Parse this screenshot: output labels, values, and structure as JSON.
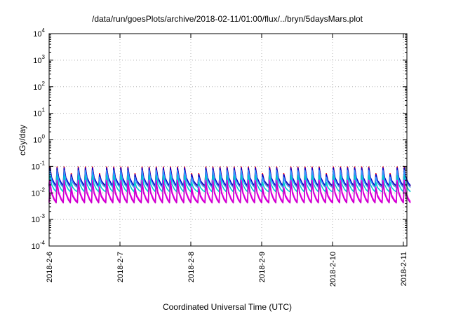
{
  "chart_data": {
    "type": "line",
    "title": "/data/run/goesPlots/archive/2018-02-11/01:00/flux/../bryn/5daysMars.plot",
    "xlabel": "Coordinated Universal Time (UTC)",
    "ylabel": "cGy/day",
    "y_scale": "log",
    "ylim": [
      0.0001,
      10000
    ],
    "y_ticks": [
      {
        "base": "10",
        "exp": "4"
      },
      {
        "base": "10",
        "exp": "3"
      },
      {
        "base": "10",
        "exp": "2"
      },
      {
        "base": "10",
        "exp": "1"
      },
      {
        "base": "10",
        "exp": "0"
      },
      {
        "base": "10",
        "exp": "-1"
      },
      {
        "base": "10",
        "exp": "-2"
      },
      {
        "base": "10",
        "exp": "-3"
      },
      {
        "base": "10",
        "exp": "-4"
      }
    ],
    "x_ticks": [
      "2018-2-6",
      "2018-2-7",
      "2018-2-8",
      "2018-2-9",
      "2018-2-10",
      "2018-2-11"
    ],
    "xlim_days": [
      0,
      5.05
    ],
    "grid": true,
    "cycles_per_day": 10,
    "series": [
      {
        "color": "#ff0000",
        "peak": 0.095,
        "trough": 0.018
      },
      {
        "color": "#0000cc",
        "peak": 0.088,
        "trough": 0.019
      },
      {
        "color": "#3399ff",
        "peak": 0.07,
        "trough": 0.016
      },
      {
        "color": "#00cccc",
        "peak": 0.045,
        "trough": 0.011
      },
      {
        "color": "#ff00ff",
        "peak": 0.03,
        "trough": 0.0047
      },
      {
        "color": "#cc00cc",
        "peak": 0.026,
        "trough": 0.0042
      }
    ]
  }
}
